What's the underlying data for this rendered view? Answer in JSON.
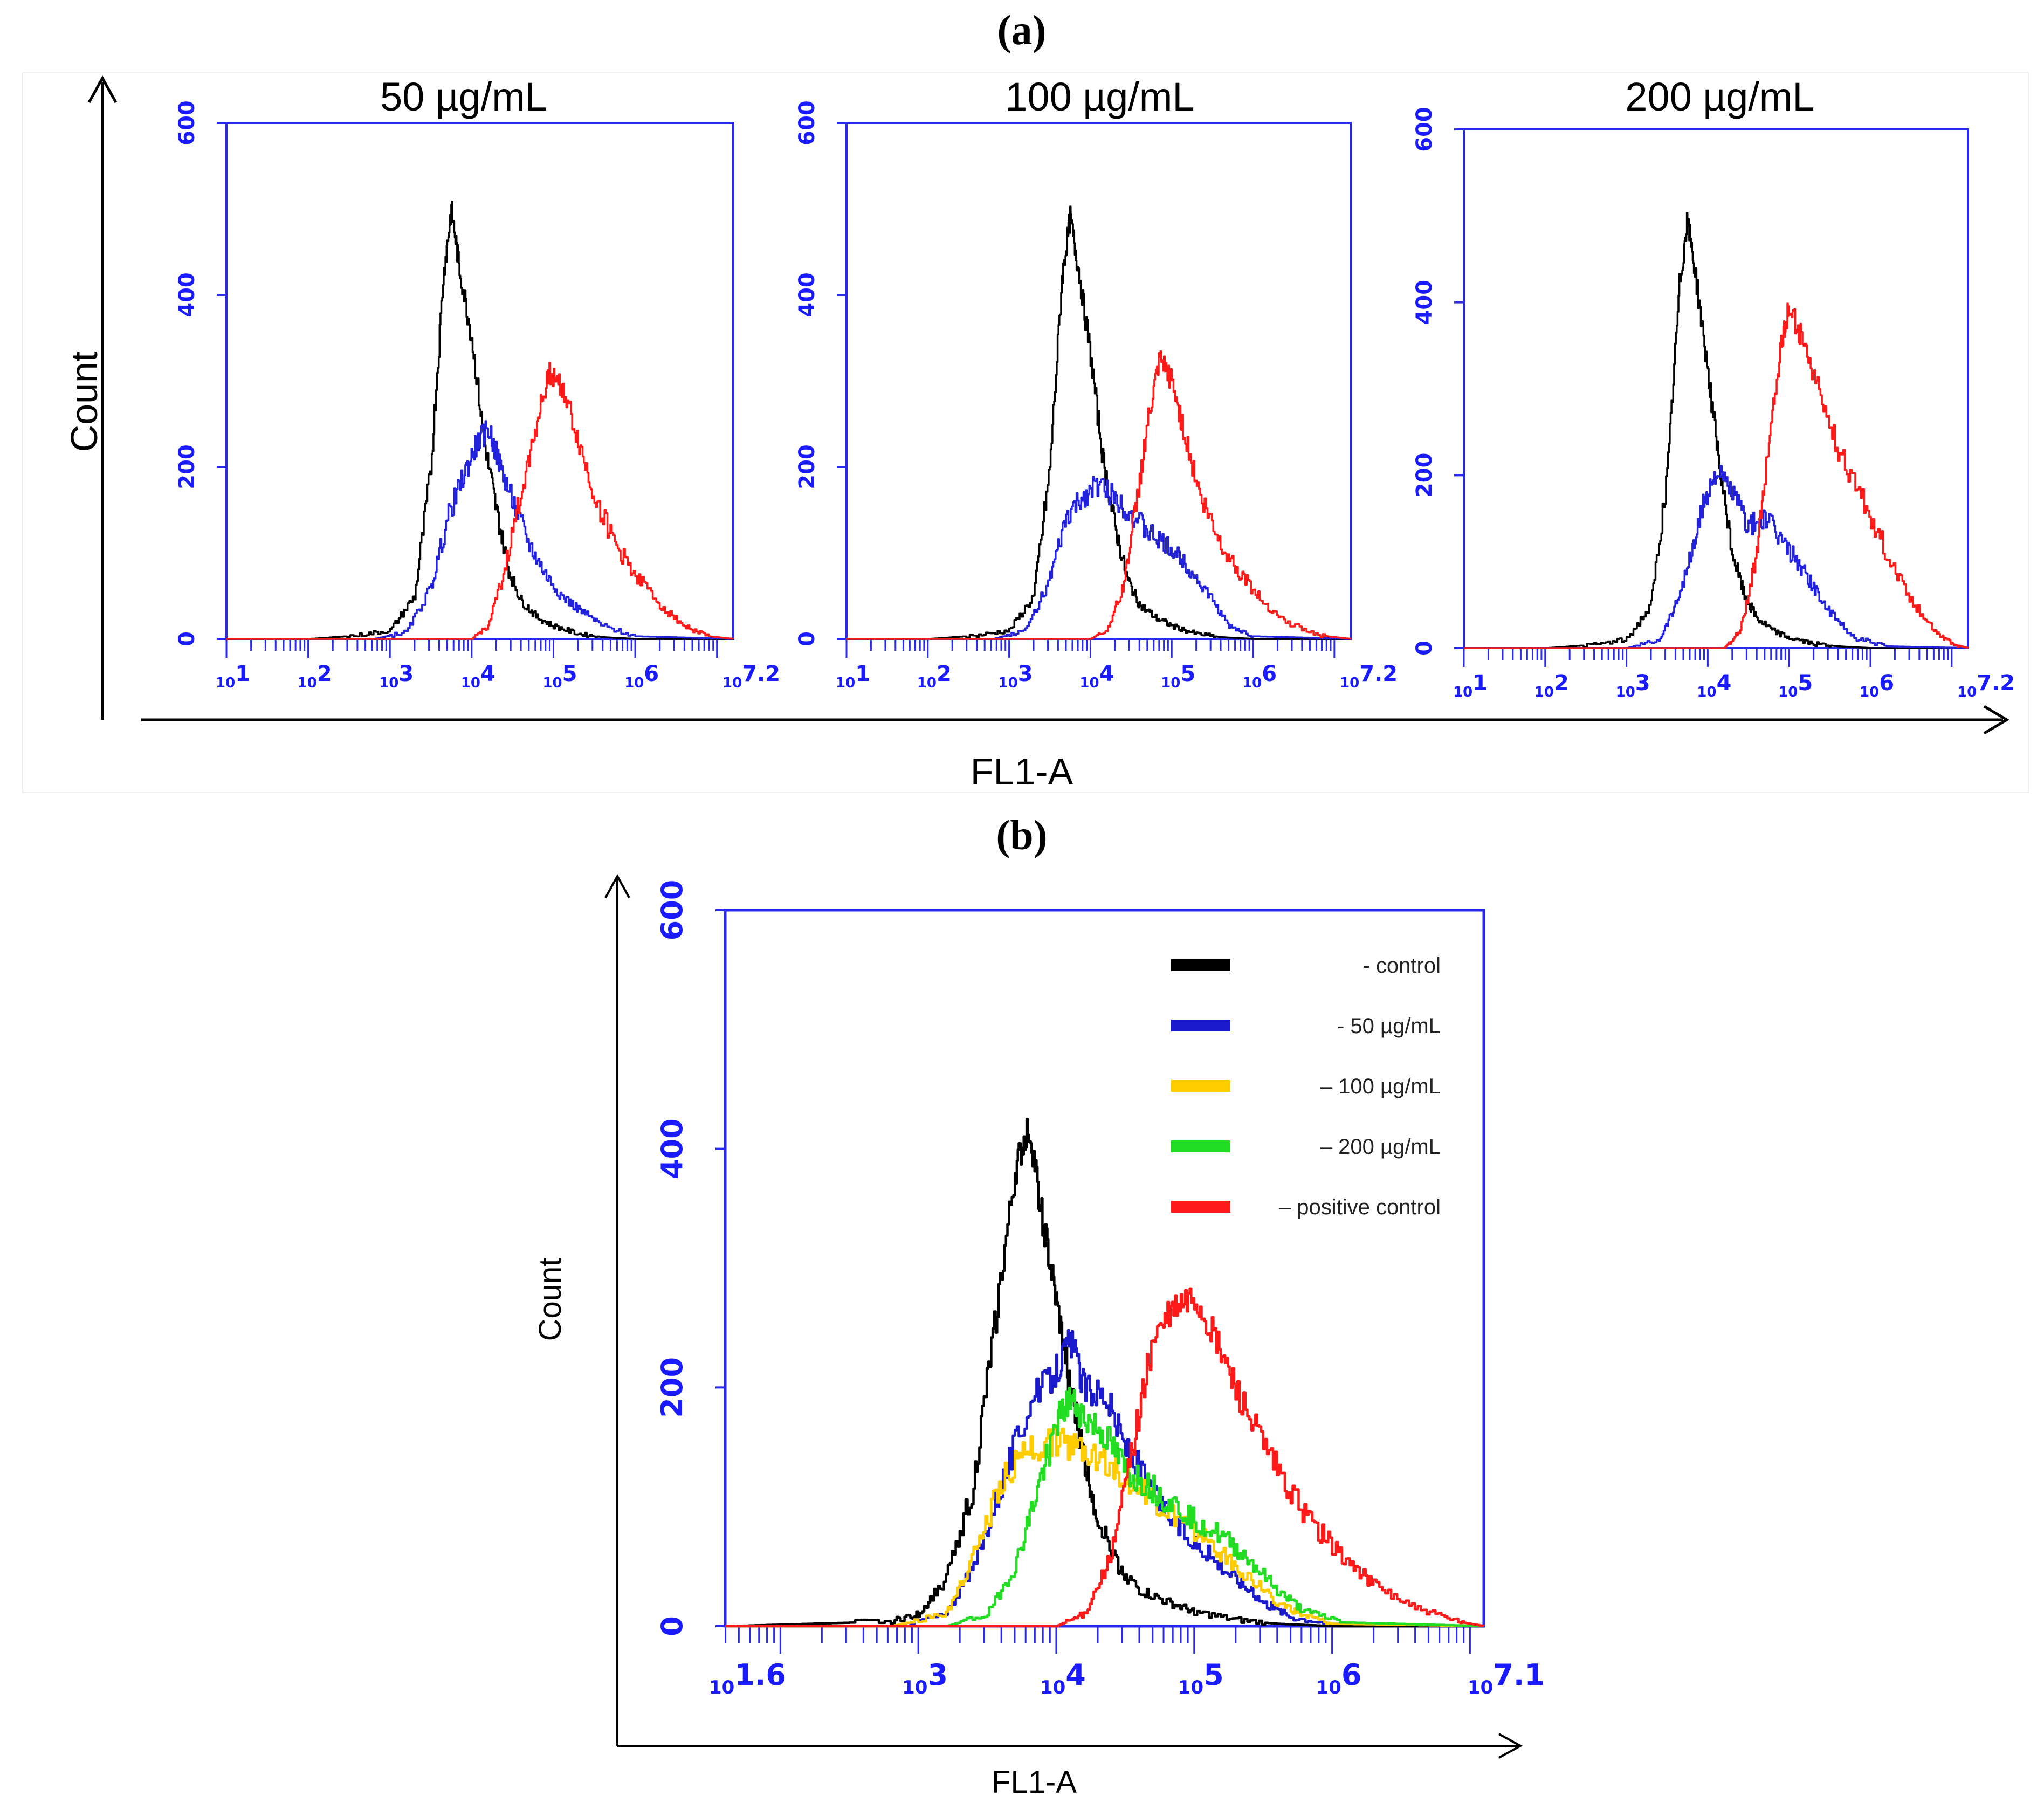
{
  "panel_a": {
    "letter": "(a)",
    "ylabel": "Count",
    "xlabel": "FL1-A"
  },
  "panel_b": {
    "letter": "(b)",
    "ylabel": "Count",
    "xlabel": "FL1-A"
  },
  "chart_data": [
    {
      "type": "line",
      "id": "a1",
      "title": "50 µg/mL",
      "xscale": "log",
      "xlim_log10": [
        1,
        7.2
      ],
      "ylim": [
        0,
        600
      ],
      "yticks": [
        "0",
        "200",
        "400",
        "600"
      ],
      "xtick_exponents": [
        "1",
        "2",
        "3",
        "4",
        "5",
        "6",
        "7.2"
      ],
      "series": [
        {
          "name": "control",
          "color": "#000000",
          "x_log10": [
            1,
            2,
            2.6,
            3.0,
            3.3,
            3.5,
            3.65,
            3.75,
            3.85,
            4.0,
            4.15,
            4.3,
            4.45,
            4.6,
            4.8,
            5.0,
            5.3,
            5.6,
            6.0,
            7.2
          ],
          "y": [
            0,
            0,
            4,
            10,
            50,
            200,
            420,
            500,
            430,
            350,
            230,
            150,
            80,
            45,
            25,
            15,
            6,
            2,
            0,
            0
          ]
        },
        {
          "name": "50 µg/mL",
          "color": "#2222dd",
          "x_log10": [
            1,
            2.8,
            3.2,
            3.5,
            3.7,
            3.9,
            4.05,
            4.2,
            4.35,
            4.5,
            4.7,
            4.9,
            5.1,
            5.3,
            5.6,
            6.0,
            7.2
          ],
          "y": [
            0,
            0,
            8,
            60,
            140,
            190,
            225,
            245,
            200,
            160,
            110,
            75,
            50,
            35,
            15,
            3,
            0
          ]
        },
        {
          "name": "positive control",
          "color": "#ff1a1a",
          "x_log10": [
            1,
            4.0,
            4.2,
            4.4,
            4.6,
            4.8,
            4.95,
            5.1,
            5.3,
            5.5,
            5.75,
            6.0,
            6.3,
            6.6,
            6.9,
            7.2
          ],
          "y": [
            0,
            0,
            15,
            80,
            170,
            255,
            310,
            295,
            230,
            165,
            110,
            75,
            40,
            15,
            3,
            0
          ]
        }
      ]
    },
    {
      "type": "line",
      "id": "a2",
      "title": "100 µg/mL",
      "xscale": "log",
      "xlim_log10": [
        1,
        7.2
      ],
      "ylim": [
        0,
        600
      ],
      "yticks": [
        "0",
        "200",
        "400",
        "600"
      ],
      "xtick_exponents": [
        "1",
        "2",
        "3",
        "4",
        "5",
        "6",
        "7.2"
      ],
      "series": [
        {
          "name": "control",
          "color": "#000000",
          "x_log10": [
            1,
            2,
            2.6,
            3.0,
            3.3,
            3.5,
            3.65,
            3.75,
            3.85,
            4.0,
            4.15,
            4.3,
            4.45,
            4.6,
            4.8,
            5.0,
            5.3,
            5.6,
            6.0,
            7.2
          ],
          "y": [
            0,
            0,
            4,
            10,
            50,
            200,
            420,
            490,
            430,
            330,
            210,
            130,
            70,
            40,
            25,
            15,
            6,
            2,
            0,
            0
          ]
        },
        {
          "name": "100 µg/mL",
          "color": "#2222dd",
          "x_log10": [
            1,
            2.8,
            3.2,
            3.5,
            3.7,
            3.9,
            4.1,
            4.3,
            4.5,
            4.7,
            4.9,
            5.1,
            5.3,
            5.5,
            5.7,
            6.0,
            7.2
          ],
          "y": [
            0,
            0,
            10,
            70,
            140,
            165,
            180,
            165,
            145,
            125,
            110,
            95,
            70,
            45,
            15,
            3,
            0
          ]
        },
        {
          "name": "positive control",
          "color": "#ff1a1a",
          "x_log10": [
            1,
            4.0,
            4.2,
            4.4,
            4.55,
            4.7,
            4.85,
            5.0,
            5.15,
            5.35,
            5.6,
            5.85,
            6.1,
            6.4,
            6.8,
            7.2
          ],
          "y": [
            0,
            0,
            10,
            60,
            150,
            250,
            325,
            300,
            240,
            165,
            110,
            75,
            45,
            20,
            4,
            0
          ]
        }
      ]
    },
    {
      "type": "line",
      "id": "a3",
      "title": "200 µg/mL",
      "xscale": "log",
      "xlim_log10": [
        1,
        7.2
      ],
      "ylim": [
        0,
        600
      ],
      "yticks": [
        "0",
        "200",
        "400",
        "600"
      ],
      "xtick_exponents": [
        "1",
        "2",
        "3",
        "4",
        "5",
        "6",
        "7.2"
      ],
      "series": [
        {
          "name": "control",
          "color": "#000000",
          "x_log10": [
            1,
            2,
            2.6,
            3.0,
            3.3,
            3.5,
            3.65,
            3.75,
            3.85,
            4.0,
            4.15,
            4.3,
            4.45,
            4.6,
            4.8,
            5.0,
            5.3,
            5.6,
            6.0,
            7.2
          ],
          "y": [
            0,
            0,
            4,
            10,
            50,
            200,
            420,
            495,
            430,
            320,
            200,
            110,
            60,
            35,
            20,
            12,
            5,
            2,
            0,
            0
          ]
        },
        {
          "name": "200 µg/mL",
          "color": "#2222dd",
          "x_log10": [
            1,
            3.0,
            3.4,
            3.6,
            3.8,
            3.95,
            4.1,
            4.3,
            4.5,
            4.7,
            4.9,
            5.1,
            5.3,
            5.5,
            5.8,
            6.2,
            7.2
          ],
          "y": [
            0,
            0,
            10,
            50,
            110,
            170,
            205,
            180,
            140,
            150,
            125,
            100,
            70,
            40,
            12,
            2,
            0
          ]
        },
        {
          "name": "positive control",
          "color": "#ff1a1a",
          "x_log10": [
            1,
            4.2,
            4.4,
            4.6,
            4.75,
            4.9,
            5.0,
            5.15,
            5.35,
            5.6,
            5.9,
            6.2,
            6.5,
            6.8,
            7.0,
            7.2
          ],
          "y": [
            0,
            0,
            20,
            110,
            240,
            350,
            395,
            360,
            300,
            230,
            170,
            110,
            55,
            20,
            5,
            0
          ]
        }
      ]
    },
    {
      "type": "line",
      "id": "b",
      "title": "",
      "xscale": "log",
      "xlim_log10": [
        1.6,
        7.1
      ],
      "ylim": [
        0,
        600
      ],
      "yticks": [
        "0",
        "200",
        "400",
        "600"
      ],
      "xtick_exponents": [
        "1.6",
        "3",
        "4",
        "5",
        "6",
        "7.1"
      ],
      "legend_position": "top-right",
      "series": [
        {
          "name": "- control",
          "color": "#000000",
          "x_log10": [
            1.6,
            2.2,
            2.8,
            3.0,
            3.2,
            3.4,
            3.55,
            3.7,
            3.8,
            3.9,
            4.0,
            4.1,
            4.2,
            4.3,
            4.45,
            4.6,
            4.8,
            5.0,
            5.3,
            5.6,
            6.0,
            7.1
          ],
          "y": [
            0,
            2,
            4,
            10,
            40,
            120,
            250,
            380,
            420,
            340,
            270,
            200,
            140,
            90,
            50,
            30,
            20,
            12,
            5,
            2,
            0,
            0
          ]
        },
        {
          "name": "- 50 µg/mL",
          "color": "#1a1acc",
          "x_log10": [
            1.6,
            2.8,
            3.2,
            3.4,
            3.6,
            3.8,
            4.0,
            4.1,
            4.2,
            4.35,
            4.5,
            4.7,
            4.9,
            5.1,
            5.3,
            5.5,
            5.7,
            6.0,
            7.1
          ],
          "y": [
            0,
            0,
            10,
            50,
            120,
            185,
            215,
            240,
            200,
            195,
            150,
            110,
            80,
            60,
            40,
            20,
            8,
            2,
            0
          ]
        },
        {
          "name": "– 100 µg/mL",
          "color": "#ffcc00",
          "x_log10": [
            1.6,
            2.8,
            3.2,
            3.4,
            3.6,
            3.8,
            4.0,
            4.2,
            4.4,
            4.6,
            4.8,
            5.0,
            5.2,
            5.4,
            5.6,
            5.8,
            6.0,
            7.1
          ],
          "y": [
            0,
            0,
            10,
            60,
            120,
            150,
            155,
            150,
            135,
            115,
            95,
            80,
            60,
            40,
            20,
            8,
            2,
            0
          ]
        },
        {
          "name": "– 200 µg/mL",
          "color": "#22dd22",
          "x_log10": [
            1.6,
            3.2,
            3.5,
            3.7,
            3.85,
            4.0,
            4.1,
            4.2,
            4.35,
            4.5,
            4.65,
            4.8,
            5.0,
            5.2,
            5.4,
            5.6,
            5.8,
            6.1,
            7.1
          ],
          "y": [
            0,
            0,
            10,
            50,
            110,
            170,
            190,
            175,
            160,
            130,
            120,
            105,
            90,
            75,
            55,
            30,
            12,
            3,
            0
          ]
        },
        {
          "name": "– positive control",
          "color": "#ff1a1a",
          "x_log10": [
            1.6,
            4.0,
            4.2,
            4.4,
            4.55,
            4.7,
            4.85,
            5.0,
            5.15,
            5.3,
            5.5,
            5.7,
            5.9,
            6.1,
            6.3,
            6.6,
            6.9,
            7.1
          ],
          "y": [
            0,
            0,
            10,
            60,
            150,
            240,
            265,
            275,
            240,
            200,
            150,
            110,
            80,
            55,
            35,
            15,
            4,
            0
          ]
        }
      ]
    }
  ]
}
